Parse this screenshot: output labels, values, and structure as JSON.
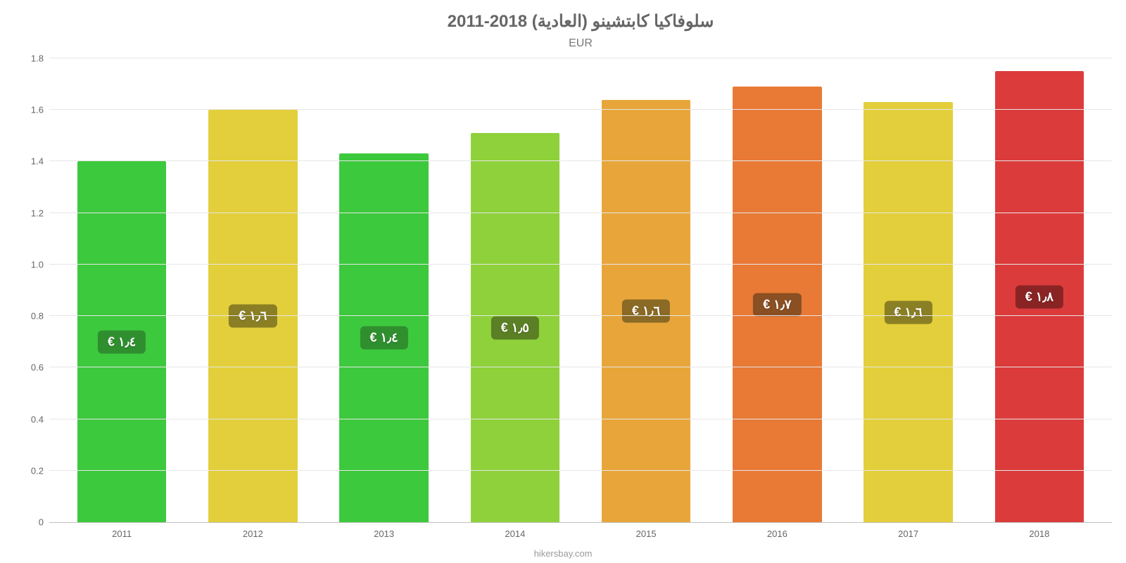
{
  "chart": {
    "type": "bar",
    "title": "سلوفاكيا كابتشينو (العادية) 2018-2011",
    "title_fontsize": 24,
    "title_color": "#666666",
    "subtitle": "EUR",
    "subtitle_fontsize": 16,
    "subtitle_color": "#777777",
    "background_color": "#ffffff",
    "grid_color": "#e6e6e6",
    "axis_line_color": "#c0c0c0",
    "axis_label_color": "#666666",
    "axis_label_fontsize": 13,
    "ylim": [
      0,
      1.8
    ],
    "yticks": [
      0,
      0.2,
      0.4,
      0.6,
      0.8,
      1.0,
      1.2,
      1.4,
      1.6,
      1.8
    ],
    "ytick_labels": [
      "0",
      "0.2",
      "0.4",
      "0.6",
      "0.8",
      "1.0",
      "1.2",
      "1.4",
      "1.6",
      "1.8"
    ],
    "categories": [
      "2011",
      "2012",
      "2013",
      "2014",
      "2015",
      "2016",
      "2017",
      "2018"
    ],
    "values": [
      1.4,
      1.6,
      1.43,
      1.51,
      1.64,
      1.69,
      1.63,
      1.75
    ],
    "bar_colors": [
      "#3dc93d",
      "#e3cf3b",
      "#3dc93d",
      "#8ed13a",
      "#e8a63a",
      "#e87a36",
      "#e3cf3b",
      "#dc3b3b"
    ],
    "value_labels": [
      "١٫٤ €",
      "١٫٦ €",
      "١٫٤ €",
      "١٫٥ €",
      "١٫٦ €",
      "١٫٧ €",
      "١٫٦ €",
      "١٫٨ €"
    ],
    "value_label_bg": [
      "#2f8f2f",
      "#8a7f24",
      "#2f8f2f",
      "#5a7f24",
      "#8a6a24",
      "#8a4f22",
      "#8a7f24",
      "#8a2424"
    ],
    "value_label_fontsize": 18,
    "value_label_color": "#ffffff",
    "bar_width_ratio": 0.68,
    "credit": "hikersbay.com",
    "credit_color": "#999999",
    "credit_fontsize": 13
  }
}
